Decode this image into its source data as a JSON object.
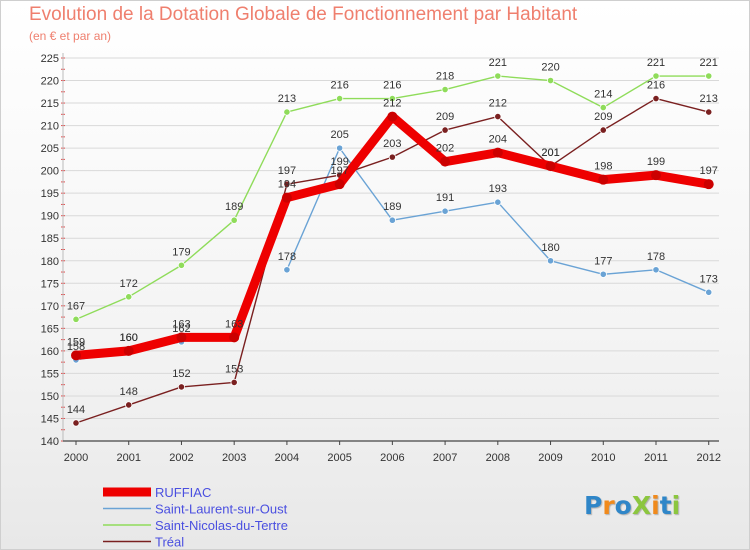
{
  "title": "Evolution de la Dotation Globale de Fonctionnement par Habitant",
  "subtitle": "(en € et par an)",
  "logo": {
    "text": "ProXiti",
    "letters": [
      {
        "ch": "P",
        "color": "#2f86c8"
      },
      {
        "ch": "r",
        "color": "#f08a1c"
      },
      {
        "ch": "o",
        "color": "#2f86c8"
      },
      {
        "ch": "X",
        "color": "#8cc63f"
      },
      {
        "ch": "i",
        "color": "#f08a1c"
      },
      {
        "ch": "t",
        "color": "#2f86c8"
      },
      {
        "ch": "i",
        "color": "#8cc63f"
      }
    ]
  },
  "chart_data": {
    "type": "line",
    "title": "Evolution de la Dotation Globale de Fonctionnement par Habitant",
    "subtitle": "(en € et par an)",
    "x": [
      "2000",
      "2001",
      "2002",
      "2003",
      "2004",
      "2005",
      "2006",
      "2007",
      "2008",
      "2009",
      "2010",
      "2011",
      "2012"
    ],
    "ylim": [
      140,
      225
    ],
    "yticks": [
      140,
      145,
      150,
      155,
      160,
      165,
      170,
      175,
      180,
      185,
      190,
      195,
      200,
      205,
      210,
      215,
      220,
      225
    ],
    "grid": "horizontal",
    "legend_position": "bottom-left",
    "series": [
      {
        "name": "RUFFIAC",
        "color": "#ee0000",
        "values": [
          159,
          160,
          163,
          163,
          194,
          197,
          212,
          202,
          204,
          201,
          198,
          199,
          197
        ],
        "labels": [
          "159",
          "160",
          "163",
          "163",
          "194",
          "197",
          "212",
          "202",
          "204",
          "201",
          "198",
          "199",
          "197"
        ]
      },
      {
        "name": "Saint-Laurent-sur-Oust",
        "color": "#6aa3d5",
        "values": [
          158,
          160,
          162,
          null,
          178,
          205,
          189,
          191,
          193,
          180,
          177,
          178,
          173
        ],
        "labels": [
          "158",
          "160",
          "162",
          "",
          "178",
          "205",
          "189",
          "191",
          "193",
          "180",
          "177",
          "178",
          "173"
        ]
      },
      {
        "name": "Saint-Nicolas-du-Tertre",
        "color": "#8fdc5a",
        "values": [
          167,
          172,
          179,
          189,
          213,
          216,
          216,
          218,
          221,
          220,
          214,
          221,
          221
        ],
        "labels": [
          "167",
          "172",
          "179",
          "189",
          "213",
          "216",
          "216",
          "218",
          "221",
          "220",
          "214",
          "221",
          "221"
        ]
      },
      {
        "name": "Tréal",
        "color": "#7a2020",
        "values": [
          144,
          148,
          152,
          153,
          197,
          199,
          203,
          209,
          212,
          201,
          209,
          216,
          213
        ],
        "labels": [
          "144",
          "148",
          "152",
          "153",
          "197",
          "199",
          "203",
          "209",
          "212",
          "201",
          "209",
          "216",
          "213"
        ]
      }
    ]
  }
}
